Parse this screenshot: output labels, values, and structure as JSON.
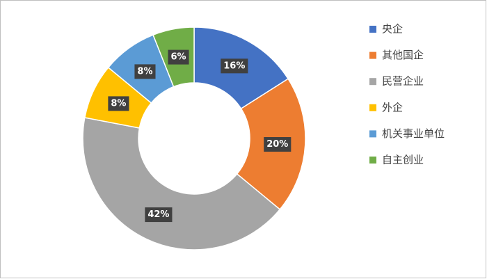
{
  "chart_data": {
    "type": "donut",
    "categories": [
      "央企",
      "其他国企",
      "民营企业",
      "外企",
      "机关事业单位",
      "自主创业"
    ],
    "values": [
      16,
      20,
      42,
      8,
      8,
      6
    ],
    "value_labels": [
      "16%",
      "20%",
      "42%",
      "8%",
      "8%",
      "6%"
    ],
    "colors": [
      "#4472c4",
      "#ed7d31",
      "#a5a5a5",
      "#ffc000",
      "#5b9bd5",
      "#70ad47"
    ],
    "legend": "right"
  }
}
